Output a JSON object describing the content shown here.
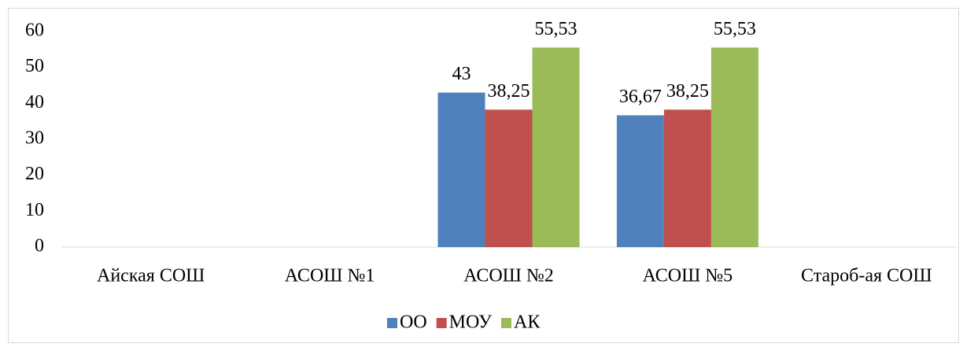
{
  "chart_data": {
    "type": "bar",
    "categories": [
      "Айская СОШ",
      "АСОШ №1",
      "АСОШ №2",
      "АСОШ №5",
      "Староб-ая СОШ"
    ],
    "series": [
      {
        "name": "ОО",
        "color": "#4f81bd",
        "values": [
          null,
          null,
          43,
          36.67,
          null
        ],
        "value_labels": [
          null,
          null,
          "43",
          "36,67",
          null
        ]
      },
      {
        "name": "МОУ",
        "color": "#c0504d",
        "values": [
          null,
          null,
          38.25,
          38.25,
          null
        ],
        "value_labels": [
          null,
          null,
          "38,25",
          "38,25",
          null
        ]
      },
      {
        "name": "АК",
        "color": "#9bbb59",
        "values": [
          null,
          null,
          55.53,
          55.53,
          null
        ],
        "value_labels": [
          null,
          null,
          "55,53",
          "55,53",
          null
        ]
      }
    ],
    "ylim": [
      0,
      60
    ],
    "yticks": [
      0,
      10,
      20,
      30,
      40,
      50,
      60
    ],
    "grid": false,
    "legend": "bottom"
  }
}
